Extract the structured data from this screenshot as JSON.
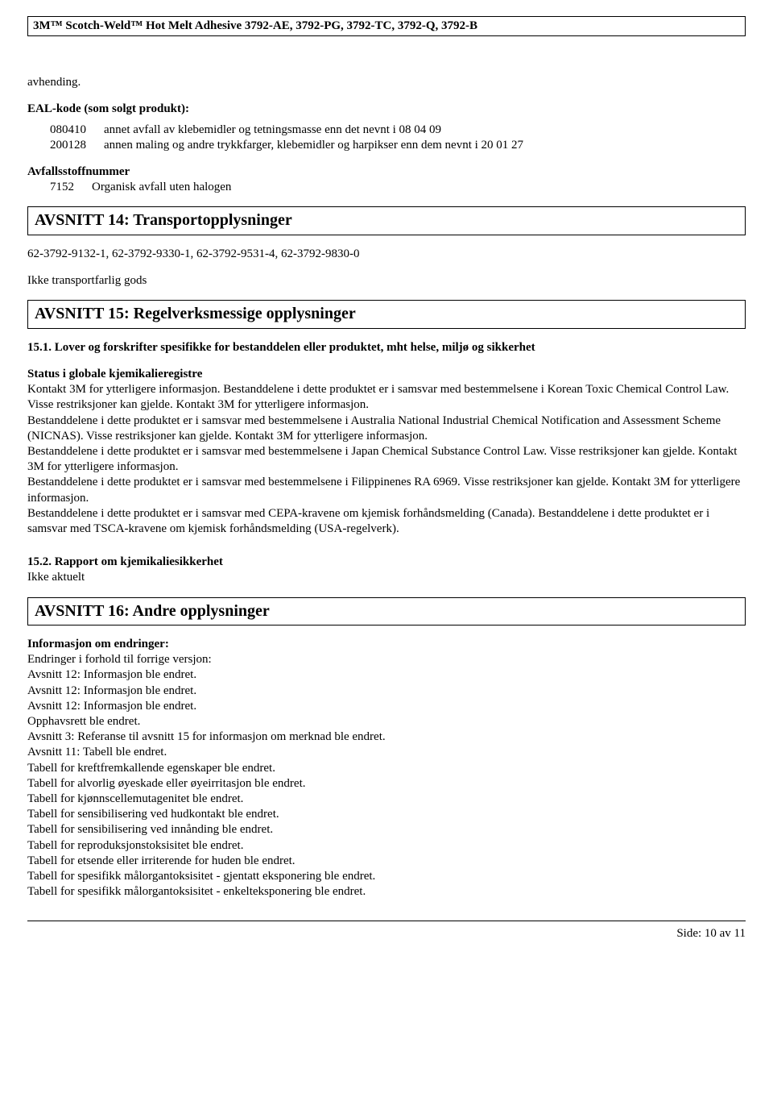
{
  "header": "3M™ Scotch-Weld™ Hot Melt Adhesive 3792-AE, 3792-PG, 3792-TC, 3792-Q, 3792-B",
  "intro": {
    "p1": "avhending.",
    "eal_label": "EAL-kode (som solgt produkt):",
    "codes": [
      {
        "code": "080410",
        "desc": "annet avfall av klebemidler og tetningsmasse enn det nevnt i 08 04 09"
      },
      {
        "code": "200128",
        "desc": "annen maling og andre trykkfarger, klebemidler og harpikser enn dem nevnt i 20 01 27"
      }
    ],
    "avfall_label": "Avfallsstoffnummer",
    "avfall_code": "7152",
    "avfall_desc": "Organisk avfall uten halogen"
  },
  "sec14": {
    "title": "AVSNITT 14: Transportopplysninger",
    "ids": "62-3792-9132-1,  62-3792-9330-1,  62-3792-9531-4,  62-3792-9830-0",
    "not_dangerous": "Ikke transportfarlig gods"
  },
  "sec15": {
    "title": "AVSNITT 15: Regelverksmessige opplysninger",
    "sub1": "15.1. Lover og forskrifter spesifikke for bestanddelen eller produktet, mht helse, miljø og sikkerhet",
    "status_label": "Status i globale kjemikalieregistre",
    "status_body": "Kontakt 3M for ytterligere informasjon. Bestanddelene i dette produktet er i samsvar med bestemmelsene i Korean Toxic Chemical Control Law. Visse restriksjoner kan gjelde. Kontakt 3M for ytterligere informasjon.\n Bestanddelene i dette produktet er i samsvar med bestemmelsene i Australia National Industrial Chemical Notification and Assessment Scheme (NICNAS). Visse restriksjoner kan gjelde. Kontakt 3M  for ytterligere informasjon.\n Bestanddelene i dette produktet er i samsvar med bestemmelsene i Japan Chemical Substance Control Law. Visse restriksjoner kan gjelde. Kontakt 3M for ytterligere informasjon.\n Bestanddelene i dette produktet er i samsvar med bestemmelsene i Filippinenes RA 6969. Visse restriksjoner kan gjelde. Kontakt 3M for ytterligere informasjon.\n Bestanddelene i dette produktet er i samsvar med CEPA-kravene om kjemisk forhåndsmelding (Canada).  Bestanddelene i dette produktet er i samsvar med TSCA-kravene om kjemisk forhåndsmelding (USA-regelverk).",
    "sub2": "15.2. Rapport om kjemikaliesikkerhet",
    "sub2_body": "Ikke aktuelt"
  },
  "sec16": {
    "title": "AVSNITT 16: Andre opplysninger",
    "info_label": "Informasjon om endringer:",
    "lines": [
      "Endringer i forhold til forrige versjon:",
      "Avsnitt 12: Informasjon ble endret.",
      "Avsnitt 12: Informasjon ble endret.",
      "Avsnitt 12: Informasjon ble endret.",
      "Opphavsrett ble endret.",
      "Avsnitt 3: Referanse til avsnitt 15 for informasjon om merknad ble endret.",
      "Avsnitt 11: Tabell ble endret.",
      "Tabell for kreftfremkallende egenskaper ble endret.",
      "Tabell for alvorlig øyeskade eller øyeirritasjon ble endret.",
      "Tabell for kjønnscellemutagenitet ble endret.",
      "Tabell for sensibilisering ved hudkontakt ble endret.",
      "Tabell for sensibilisering ved innånding ble endret.",
      "Tabell for reproduksjonstoksisitet ble endret.",
      "Tabell for etsende eller irriterende for huden ble endret.",
      "Tabell for spesifikk målorgantoksisitet - gjentatt eksponering ble endret.",
      "Tabell for spesifikk målorgantoksisitet - enkelteksponering ble endret."
    ]
  },
  "footer": "Side: 10 av  11"
}
